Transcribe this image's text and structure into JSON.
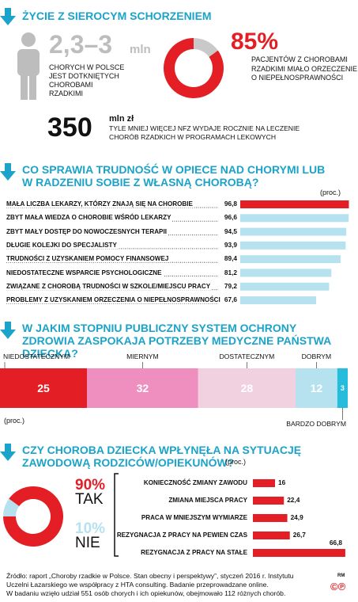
{
  "header": {
    "title": "ŻYCIE Z SIEROCYM SCHORZENIEM"
  },
  "facts": {
    "patients_number": "2,3–3",
    "patients_unit": "mln",
    "patients_text": [
      "CHORYCH W POLSCE",
      "JEST DOTKNIĘTYCH",
      "CHOROBAMI",
      "RZADKIMI"
    ],
    "nfz_number": "350",
    "nfz_unit": "mln zł",
    "nfz_text": [
      "TYLE MNIEJ WIĘCEJ NFZ WYDAJE ROCZNIE NA LECZENIE",
      "CHORÓB RZADKICH W PROGRAMACH LEKOWYCH"
    ]
  },
  "chart_data": [
    {
      "type": "donut",
      "categories": [
        "PACJENTÓW Z CHOROBAMI RZADKIMI MIAŁO ORZECZENIE O NIEPEŁNOSPRAWNOŚCI",
        null
      ],
      "values": [
        85,
        15
      ],
      "value_labels": [
        "85%",
        null
      ],
      "colors": [
        "#e31e24",
        "#c9c9c9"
      ]
    },
    {
      "type": "hbar",
      "title": "CO SPRAWIA TRUDNOŚĆ W OPIECE NAD CHORYMI LUB W RADZENIU SOBIE Z WŁASNĄ CHOROBĄ?",
      "unit": "(proc.)",
      "categories": [
        "MAŁA LICZBA LEKARZY, KTÓRZY ZNAJĄ SIĘ NA CHOROBIE",
        "ZBYT MAŁA WIEDZA O CHOROBIE WŚRÓD LEKARZY",
        "ZBYT MAŁY DOSTĘP DO NOWOCZESNYCH TERAPII",
        "DŁUGIE KOLEJKI DO SPECJALISTY",
        "TRUDNOŚCI Z UZYSKANIEM POMOCY FINANSOWEJ",
        "NIEDOSTATECZNE WSPARCIE PSYCHOLOGICZNE",
        "ZWIĄZANE Z CHOROBĄ TRUDNOŚCI W SZKOLE/MIEJSCU PRACY",
        "PROBLEMY Z UZYSKANIEM ORZECZENIA O NIEPEŁNOSPRAWNOŚCI"
      ],
      "values": [
        96.8,
        96.6,
        94.5,
        93.9,
        89.4,
        81.2,
        79.2,
        67.6
      ],
      "value_labels": [
        "96,8",
        "96,6",
        "94,5",
        "93,9",
        "89,4",
        "81,2",
        "79,2",
        "67,6"
      ],
      "colors": [
        "#e31e24",
        "#b6e2f0",
        "#b6e2f0",
        "#b6e2f0",
        "#b6e2f0",
        "#b6e2f0",
        "#b6e2f0",
        "#b6e2f0"
      ]
    },
    {
      "type": "stacked_bar",
      "title": "W JAKIM STOPNIU PUBLICZNY SYSTEM OCHRONY ZDROWIA ZASPOKAJA POTRZEBY MEDYCZNE PAŃSTWA DZIECKA?",
      "unit": "(proc.)",
      "series": [
        {
          "name": "NIEDOSTATECZNYM",
          "color": "#e31e24",
          "values": [
            25
          ]
        },
        {
          "name": "MIERNYM",
          "color": "#ef8fc0",
          "values": [
            32
          ]
        },
        {
          "name": "DOSTATECZNYM",
          "color": "#f1d0df",
          "values": [
            28
          ]
        },
        {
          "name": "DOBRYM",
          "color": "#b6e2f0",
          "values": [
            12
          ]
        },
        {
          "name": "BARDZO DOBRYM",
          "color": "#26bcdc",
          "values": [
            3
          ]
        }
      ]
    },
    {
      "type": "donut",
      "title": "CZY CHOROBA DZIECKA WPŁYNĘŁA NA SYTUACJĘ ZAWODOWĄ RODZICÓW/OPIEKUNÓW?",
      "unit": "(proc.)",
      "categories": [
        "TAK",
        "NIE"
      ],
      "values": [
        90,
        10
      ],
      "value_labels": [
        "90%",
        "10%"
      ],
      "colors": [
        "#e31e24",
        "#b6e2f0"
      ]
    },
    {
      "type": "hbar",
      "categories": [
        "KONIECZNOŚĆ ZMIANY ZAWODU",
        "ZMIANA MIEJSCA PRACY",
        "PRACA W MNIEJSZYM WYMIARZE",
        "REZYGNACJA Z PRACY NA PEWIEN CZAS",
        "REZYGNACJA Z PRACY NA STAŁE"
      ],
      "values": [
        16,
        22.4,
        24.9,
        26.7,
        66.8
      ],
      "value_labels": [
        "16",
        "22,4",
        "24,9",
        "26,7",
        "66,8"
      ],
      "colors": [
        "#e31e24",
        "#e31e24",
        "#e31e24",
        "#e31e24",
        "#e31e24"
      ]
    }
  ],
  "footer": {
    "source": [
      "Źródło: raport „Choroby rzadkie w Polsce. Stan obecny i perspektywy”, styczeń 2016 r. Instytutu",
      "Uczelni Łazarskiego we współpracy z HTA consulting. Badanie przeprowadzane online.",
      "W badaniu wzięło udział 551 osób chorych i ich opiekunów, obejmowało 112 różnych chorób."
    ],
    "author": "RM",
    "mark": "©℗"
  }
}
